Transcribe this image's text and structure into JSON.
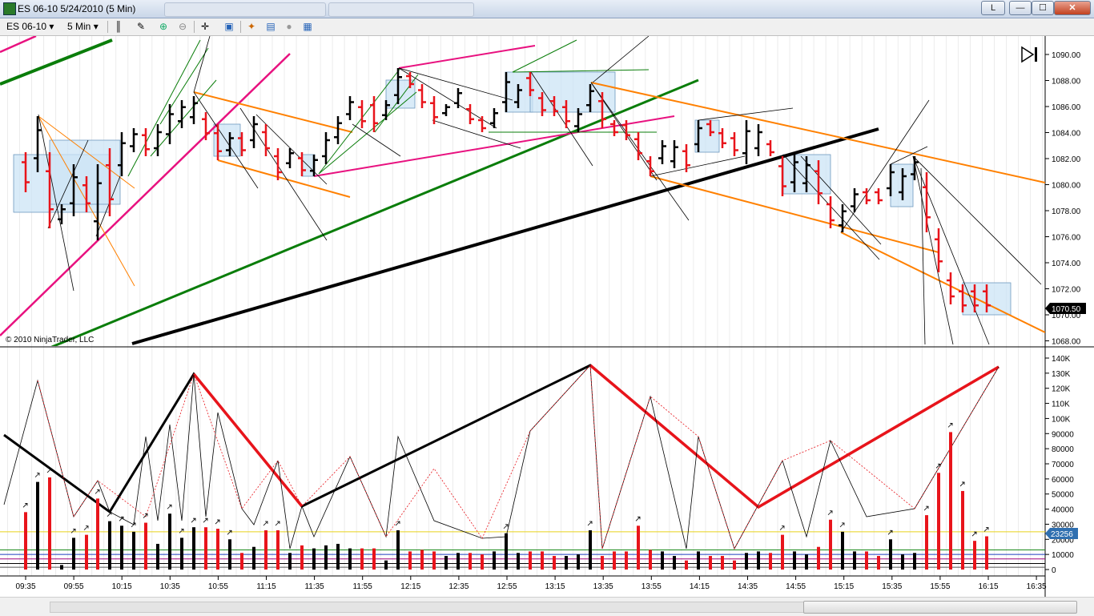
{
  "window": {
    "title": "ES 06-10  5/24/2010 (5 Min)",
    "lock_label": "L",
    "minimize_label": "—",
    "maximize_label": "☐",
    "close_label": "✕"
  },
  "toolbar": {
    "instrument": "ES 06-10",
    "interval": "5 Min",
    "icons": [
      "bar-style-icon",
      "pencil-icon",
      "zoom-in-icon",
      "zoom-out-icon",
      "crosshair-icon",
      "properties-icon",
      "strategies-icon",
      "indicators-icon",
      "data-box-icon",
      "chart-trader-icon"
    ]
  },
  "chart": {
    "copyright": "© 2010 NinjaTrader, LLC",
    "price_axis_labels": [
      "1090.00",
      "1088.00",
      "1086.00",
      "1084.00",
      "1082.00",
      "1080.00",
      "1078.00",
      "1076.00",
      "1074.00",
      "1072.00",
      "1070.00",
      "1068.00"
    ],
    "last_price": "1070.50",
    "volume_axis_labels": [
      "140K",
      "130K",
      "120K",
      "110K",
      "100K",
      "90000",
      "80000",
      "70000",
      "60000",
      "50000",
      "40000",
      "30000",
      "20000",
      "10000",
      "0"
    ],
    "volume_marker": "23256",
    "time_labels": [
      "09:35",
      "09:55",
      "10:15",
      "10:35",
      "10:55",
      "11:15",
      "11:35",
      "11:55",
      "12:15",
      "12:35",
      "12:55",
      "13:15",
      "13:35",
      "13:55",
      "14:15",
      "14:35",
      "14:55",
      "15:15",
      "15:35",
      "15:55",
      "16:15",
      "16:35"
    ],
    "colors": {
      "up": "#000000",
      "down": "#e8141b",
      "orange": "#ff8000",
      "green": "#0a7d0a",
      "magenta": "#e8117f",
      "box": "#cce4f5"
    }
  }
}
